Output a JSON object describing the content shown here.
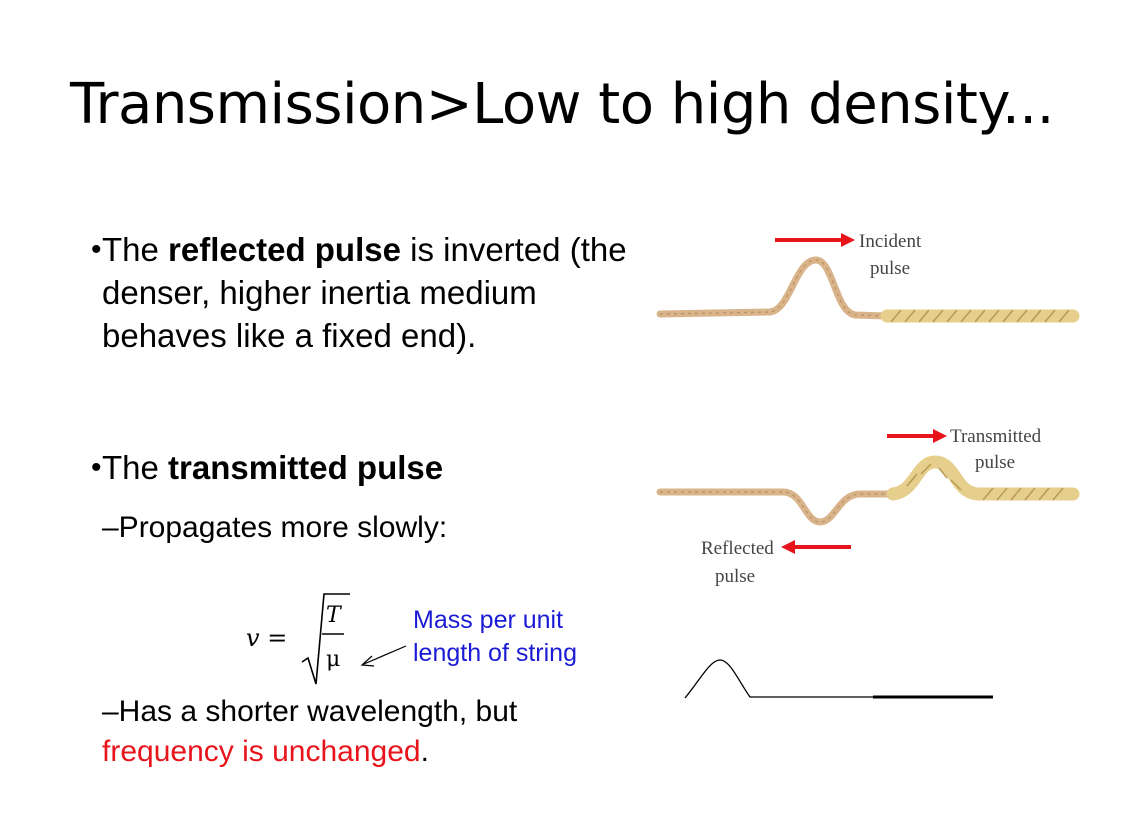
{
  "slide": {
    "title": "Transmission>Low to high density...",
    "bullet1": {
      "pre": "The ",
      "bold": "reflected pulse",
      "post": " is inverted (the denser, higher inertia medium behaves like a fixed end)."
    },
    "bullet2": {
      "pre": "The ",
      "bold": "transmitted pulse"
    },
    "sub1": "–Propagates more slowly:",
    "formula": {
      "lhs": "v =",
      "numerator": "T",
      "denominator": "μ"
    },
    "annotation": {
      "line1": "Mass per unit",
      "line2": "length of string"
    },
    "sub2": {
      "pre": "–Has a shorter wavelength, but ",
      "red": "frequency is unchanged",
      "post": "."
    }
  },
  "figure": {
    "incident_label_1": "Incident",
    "incident_label_2": "pulse",
    "transmitted_label_1": "Transmitted",
    "transmitted_label_2": "pulse",
    "reflected_label_1": "Reflected",
    "reflected_label_2": "pulse",
    "arrow_color": "#e8141c",
    "rope_color": "#d9b48a",
    "heavy_rope_color": "#e6cf8c"
  }
}
